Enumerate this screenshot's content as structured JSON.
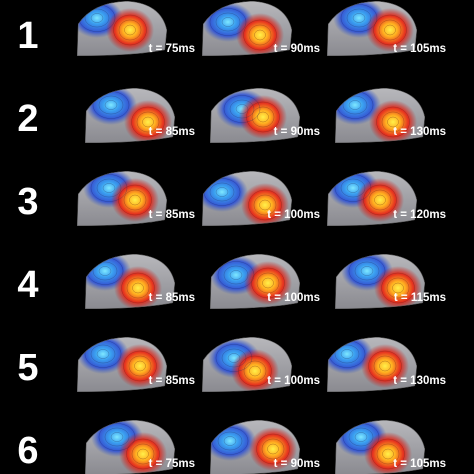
{
  "rows": [
    {
      "label": "1",
      "times": [
        "t = 75ms",
        "t = 90ms",
        "t = 105ms"
      ]
    },
    {
      "label": "2",
      "times": [
        "t = 85ms",
        "t = 90ms",
        "t = 130ms"
      ]
    },
    {
      "label": "3",
      "times": [
        "t = 85ms",
        "t = 100ms",
        "t = 120ms"
      ]
    },
    {
      "label": "4",
      "times": [
        "t = 85ms",
        "t = 100ms",
        "t = 115ms"
      ]
    },
    {
      "label": "5",
      "times": [
        "t = 85ms",
        "t = 100ms",
        "t = 130ms"
      ]
    },
    {
      "label": "6",
      "times": [
        "t = 75ms",
        "t = 90ms",
        "t = 105ms"
      ]
    }
  ]
}
